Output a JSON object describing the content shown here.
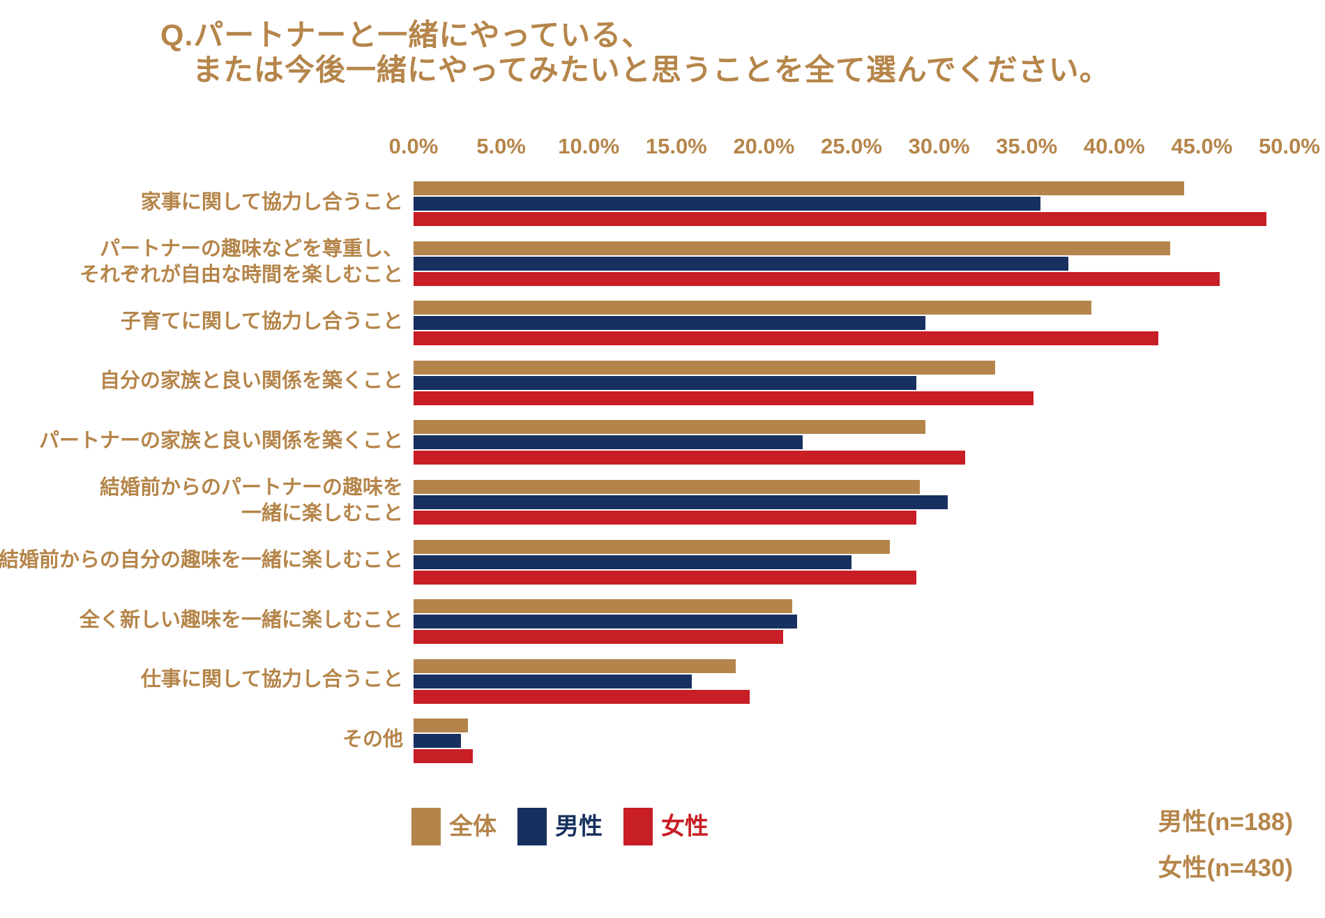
{
  "title": {
    "line1": "Q.パートナーと一緒にやっている、",
    "line2": "または今後一緒にやってみたいと思うことを全て選んでください。"
  },
  "colors": {
    "gold": "#B5854A",
    "bar_total": "#B4844B",
    "bar_male": "#17305F",
    "bar_female": "#C81E25"
  },
  "legend": {
    "items": [
      {
        "label": "全体",
        "color_key": "bar_total"
      },
      {
        "label": "男性",
        "color_key": "bar_male"
      },
      {
        "label": "女性",
        "color_key": "bar_female"
      }
    ]
  },
  "footnote": {
    "male": "男性(n=188)",
    "female": "女性(n=430)"
  },
  "chart_data": {
    "type": "bar",
    "orientation": "horizontal",
    "title": "Q.パートナーと一緒にやっている、または今後一緒にやってみたいと思うことを全て選んでください。",
    "xlabel": "",
    "ylabel": "",
    "xlim": [
      0,
      50
    ],
    "x_tick_labels": [
      "0.0%",
      "5.0%",
      "10.0%",
      "15.0%",
      "20.0%",
      "25.0%",
      "30.0%",
      "35.0%",
      "40.0%",
      "45.0%",
      "50.0%"
    ],
    "grid": false,
    "legend_position": "bottom",
    "categories": [
      {
        "lines": [
          "家事に関して協力し合うこと"
        ]
      },
      {
        "lines": [
          "パートナーの趣味などを尊重し、",
          "それぞれが自由な時間を楽しむこと"
        ]
      },
      {
        "lines": [
          "子育てに関して協力し合うこと"
        ]
      },
      {
        "lines": [
          "自分の家族と良い関係を築くこと"
        ]
      },
      {
        "lines": [
          "パートナーの家族と良い関係を築くこと"
        ]
      },
      {
        "lines": [
          "結婚前からのパートナーの趣味を",
          "一緒に楽しむこと"
        ]
      },
      {
        "lines": [
          "結婚前からの自分の趣味を一緒に楽しむこと"
        ]
      },
      {
        "lines": [
          "全く新しい趣味を一緒に楽しむこと"
        ]
      },
      {
        "lines": [
          "仕事に関して協力し合うこと"
        ]
      },
      {
        "lines": [
          "その他"
        ]
      }
    ],
    "series": [
      {
        "name": "全体",
        "values": [
          44.0,
          43.2,
          38.7,
          33.2,
          29.2,
          28.9,
          27.2,
          21.6,
          18.4,
          3.1
        ]
      },
      {
        "name": "男性",
        "values": [
          35.8,
          37.4,
          29.2,
          28.7,
          22.2,
          30.5,
          25.0,
          21.9,
          15.9,
          2.7
        ]
      },
      {
        "name": "女性",
        "values": [
          48.7,
          46.0,
          42.5,
          35.4,
          31.5,
          28.7,
          28.7,
          21.1,
          19.2,
          3.4
        ]
      }
    ],
    "sample_sizes": {
      "male": 188,
      "female": 430
    }
  }
}
